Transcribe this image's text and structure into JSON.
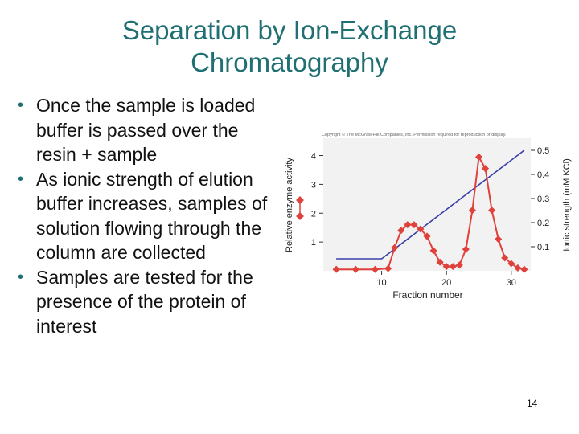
{
  "slide": {
    "title_line1": "Separation by Ion-Exchange",
    "title_line2": "Chromatography",
    "bullets": [
      "Once the sample is loaded buffer is passed over the resin + sample",
      "As ionic strength of elution buffer increases, samples of solution flowing through the column are collected",
      "Samples are tested for the presence of the protein of interest"
    ],
    "page_number": "14"
  },
  "figure": {
    "copyright": "Copyright © The McGraw-Hill Companies, Inc. Permission required for reproduction or display."
  },
  "chart_data": {
    "type": "line",
    "xlabel": "Fraction number",
    "ylabel_left": "Relative enzyme activity",
    "ylabel_right": "Ionic strength (mM KCl)",
    "xlim": [
      1,
      33
    ],
    "ylim_left": [
      0,
      4.6
    ],
    "ylim_right": [
      0,
      0.55
    ],
    "x_ticks": [
      10,
      20,
      30
    ],
    "y_ticks_left": [
      1,
      2,
      3,
      4
    ],
    "y_ticks_right": [
      0.1,
      0.2,
      0.3,
      0.4,
      0.5
    ],
    "series": [
      {
        "axis": "left",
        "color": "#e0413a",
        "x": [
          3,
          6,
          9,
          11,
          12,
          13,
          14,
          15,
          16,
          17,
          18,
          19,
          20,
          21,
          22,
          23,
          24,
          25,
          26,
          27,
          28,
          29,
          30,
          31,
          32
        ],
        "y": [
          0.05,
          0.05,
          0.05,
          0.08,
          0.8,
          1.4,
          1.6,
          1.6,
          1.45,
          1.2,
          0.7,
          0.3,
          0.15,
          0.15,
          0.2,
          0.75,
          2.1,
          3.95,
          3.55,
          2.1,
          1.1,
          0.45,
          0.25,
          0.1,
          0.05
        ]
      },
      {
        "axis": "right",
        "color": "#3b3fa8",
        "x": [
          3,
          10,
          32
        ],
        "y": [
          0.05,
          0.05,
          0.5
        ]
      }
    ]
  }
}
